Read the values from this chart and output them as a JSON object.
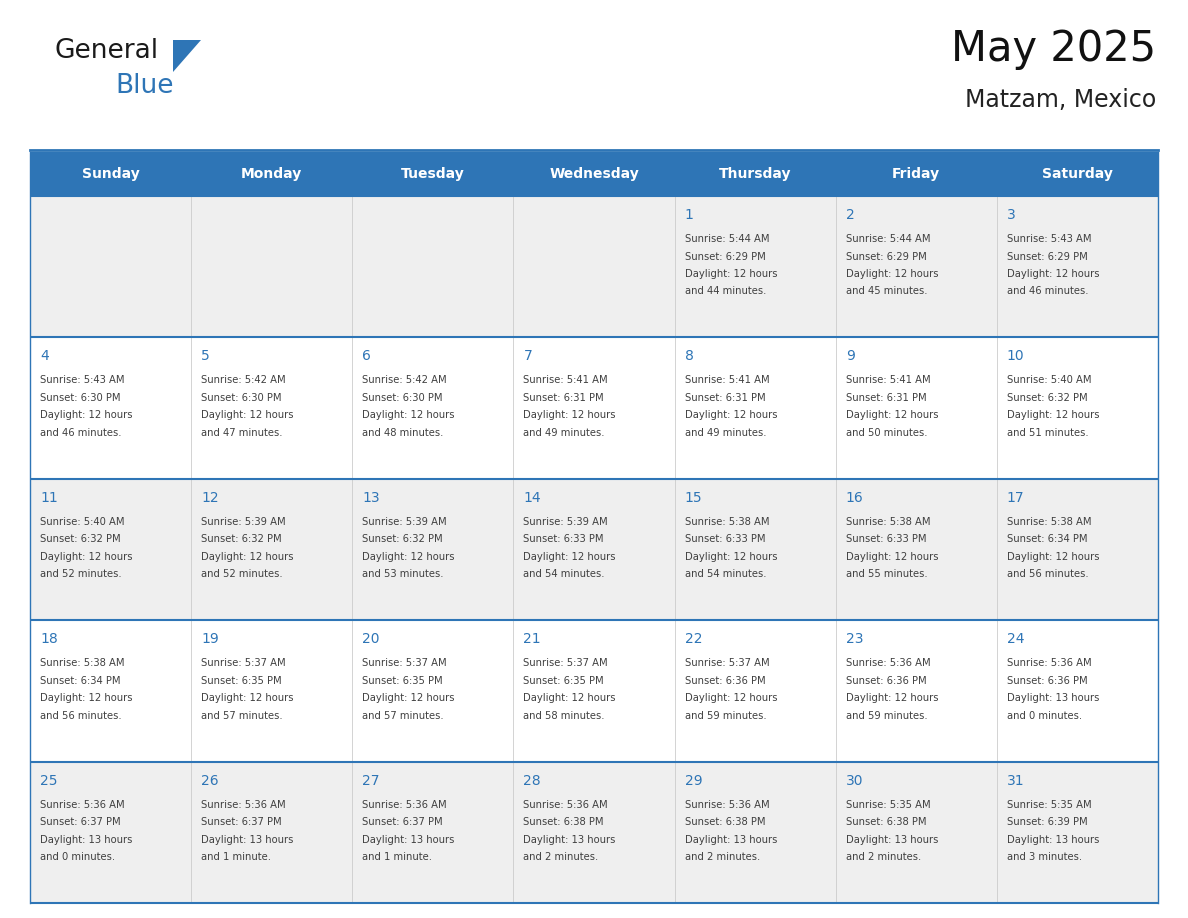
{
  "title": "May 2025",
  "subtitle": "Matzam, Mexico",
  "days_of_week": [
    "Sunday",
    "Monday",
    "Tuesday",
    "Wednesday",
    "Thursday",
    "Friday",
    "Saturday"
  ],
  "header_bg": "#2E75B6",
  "header_text": "#FFFFFF",
  "cell_bg_odd": "#EFEFEF",
  "cell_bg_even": "#FFFFFF",
  "border_color": "#2E75B6",
  "day_number_color": "#2E75B6",
  "text_color": "#404040",
  "logo_black": "#1A1A1A",
  "logo_blue": "#2E75B6",
  "weeks": [
    [
      {
        "day": null,
        "info": null
      },
      {
        "day": null,
        "info": null
      },
      {
        "day": null,
        "info": null
      },
      {
        "day": null,
        "info": null
      },
      {
        "day": 1,
        "info": "Sunrise: 5:44 AM\nSunset: 6:29 PM\nDaylight: 12 hours\nand 44 minutes."
      },
      {
        "day": 2,
        "info": "Sunrise: 5:44 AM\nSunset: 6:29 PM\nDaylight: 12 hours\nand 45 minutes."
      },
      {
        "day": 3,
        "info": "Sunrise: 5:43 AM\nSunset: 6:29 PM\nDaylight: 12 hours\nand 46 minutes."
      }
    ],
    [
      {
        "day": 4,
        "info": "Sunrise: 5:43 AM\nSunset: 6:30 PM\nDaylight: 12 hours\nand 46 minutes."
      },
      {
        "day": 5,
        "info": "Sunrise: 5:42 AM\nSunset: 6:30 PM\nDaylight: 12 hours\nand 47 minutes."
      },
      {
        "day": 6,
        "info": "Sunrise: 5:42 AM\nSunset: 6:30 PM\nDaylight: 12 hours\nand 48 minutes."
      },
      {
        "day": 7,
        "info": "Sunrise: 5:41 AM\nSunset: 6:31 PM\nDaylight: 12 hours\nand 49 minutes."
      },
      {
        "day": 8,
        "info": "Sunrise: 5:41 AM\nSunset: 6:31 PM\nDaylight: 12 hours\nand 49 minutes."
      },
      {
        "day": 9,
        "info": "Sunrise: 5:41 AM\nSunset: 6:31 PM\nDaylight: 12 hours\nand 50 minutes."
      },
      {
        "day": 10,
        "info": "Sunrise: 5:40 AM\nSunset: 6:32 PM\nDaylight: 12 hours\nand 51 minutes."
      }
    ],
    [
      {
        "day": 11,
        "info": "Sunrise: 5:40 AM\nSunset: 6:32 PM\nDaylight: 12 hours\nand 52 minutes."
      },
      {
        "day": 12,
        "info": "Sunrise: 5:39 AM\nSunset: 6:32 PM\nDaylight: 12 hours\nand 52 minutes."
      },
      {
        "day": 13,
        "info": "Sunrise: 5:39 AM\nSunset: 6:32 PM\nDaylight: 12 hours\nand 53 minutes."
      },
      {
        "day": 14,
        "info": "Sunrise: 5:39 AM\nSunset: 6:33 PM\nDaylight: 12 hours\nand 54 minutes."
      },
      {
        "day": 15,
        "info": "Sunrise: 5:38 AM\nSunset: 6:33 PM\nDaylight: 12 hours\nand 54 minutes."
      },
      {
        "day": 16,
        "info": "Sunrise: 5:38 AM\nSunset: 6:33 PM\nDaylight: 12 hours\nand 55 minutes."
      },
      {
        "day": 17,
        "info": "Sunrise: 5:38 AM\nSunset: 6:34 PM\nDaylight: 12 hours\nand 56 minutes."
      }
    ],
    [
      {
        "day": 18,
        "info": "Sunrise: 5:38 AM\nSunset: 6:34 PM\nDaylight: 12 hours\nand 56 minutes."
      },
      {
        "day": 19,
        "info": "Sunrise: 5:37 AM\nSunset: 6:35 PM\nDaylight: 12 hours\nand 57 minutes."
      },
      {
        "day": 20,
        "info": "Sunrise: 5:37 AM\nSunset: 6:35 PM\nDaylight: 12 hours\nand 57 minutes."
      },
      {
        "day": 21,
        "info": "Sunrise: 5:37 AM\nSunset: 6:35 PM\nDaylight: 12 hours\nand 58 minutes."
      },
      {
        "day": 22,
        "info": "Sunrise: 5:37 AM\nSunset: 6:36 PM\nDaylight: 12 hours\nand 59 minutes."
      },
      {
        "day": 23,
        "info": "Sunrise: 5:36 AM\nSunset: 6:36 PM\nDaylight: 12 hours\nand 59 minutes."
      },
      {
        "day": 24,
        "info": "Sunrise: 5:36 AM\nSunset: 6:36 PM\nDaylight: 13 hours\nand 0 minutes."
      }
    ],
    [
      {
        "day": 25,
        "info": "Sunrise: 5:36 AM\nSunset: 6:37 PM\nDaylight: 13 hours\nand 0 minutes."
      },
      {
        "day": 26,
        "info": "Sunrise: 5:36 AM\nSunset: 6:37 PM\nDaylight: 13 hours\nand 1 minute."
      },
      {
        "day": 27,
        "info": "Sunrise: 5:36 AM\nSunset: 6:37 PM\nDaylight: 13 hours\nand 1 minute."
      },
      {
        "day": 28,
        "info": "Sunrise: 5:36 AM\nSunset: 6:38 PM\nDaylight: 13 hours\nand 2 minutes."
      },
      {
        "day": 29,
        "info": "Sunrise: 5:36 AM\nSunset: 6:38 PM\nDaylight: 13 hours\nand 2 minutes."
      },
      {
        "day": 30,
        "info": "Sunrise: 5:35 AM\nSunset: 6:38 PM\nDaylight: 13 hours\nand 2 minutes."
      },
      {
        "day": 31,
        "info": "Sunrise: 5:35 AM\nSunset: 6:39 PM\nDaylight: 13 hours\nand 3 minutes."
      }
    ]
  ]
}
